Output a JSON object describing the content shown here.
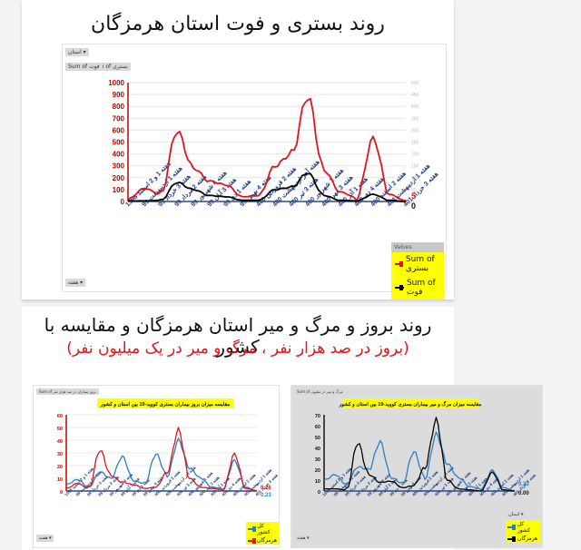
{
  "top_card": {
    "title": "روند بستری و فوت استان هرمزگان",
    "filter_button": "استان ▾",
    "field_buttons": [
      "Sum of بستری",
      "Sum of فوت"
    ],
    "axis_button": "هفته ▾",
    "legend": {
      "header": "Values",
      "items": [
        {
          "label": "Sum of بستری",
          "color": "#e0141c"
        },
        {
          "label": "Sum of فوت",
          "color": "#000000"
        }
      ]
    },
    "end_labels": {
      "hospitalized": "5",
      "deaths": "0"
    }
  },
  "bottom_card": {
    "title": "روند بروز و مرگ و میر استان هرمزگان و مقایسه با کشور",
    "subtitle": "(بروز در صد هزار نفر ، مرگ و میر در یک میلیون نفر)",
    "left_chart": {
      "field_button": "Sum of بروز بیماران در صد هزار نفر",
      "title": "مقایسه میزان بروز بیماران بستری کووید-19 بین استان و کشور",
      "axis_button": "هفته ▾",
      "legend": [
        {
          "label": "کل کشور",
          "color": "#2a7fc4"
        },
        {
          "label": "هرمزگان",
          "color": "#e0141c"
        }
      ],
      "end_labels": {
        "province": "0.26",
        "country": "0.23"
      }
    },
    "right_chart": {
      "field_button": "Sum of مرگ و میر در میلیون",
      "title": "مقایسه میزان مرگ و میر بیماران بستری کووید-19 بین استان و کشور",
      "axis_button": "هفته ▾",
      "filter_button": "استان ▾",
      "legend": [
        {
          "label": "کل کشور",
          "color": "#2a7fc4"
        },
        {
          "label": "هرمزگان",
          "color": "#000000"
        }
      ],
      "end_labels": {
        "country": "0.23",
        "province": "0.00"
      }
    }
  },
  "x_labels": [
    "هفته 1 و 2 اسفند 1398",
    "هفته 1 اردیبهشت 99",
    "هفته 3 خرداد 99",
    "هفته 2 مرداد 99",
    "هفته 4 شهریور 99",
    "هفته 3 آبان 99",
    "هفته 1 دی 99",
    "هفته 4 بهمن 99",
    "هفته 2 فروردین 400",
    "هفته آخر اردیبهشت 400",
    "هفته 3 تیر 400",
    "هفته 1 شهریور 400",
    "هفته 3 مهر 400",
    "هفته 1 آذر 400",
    "هفته 4 دی 400",
    "هفته 2 اسفند 400",
    "هفته 1 اردیبهشت 401",
    "هفته 3 خرداد 401"
  ],
  "chart_data": [
    {
      "type": "line",
      "title": "روند بستری و فوت استان هرمزگان",
      "xlabel": "هفته",
      "ylabel_left": "Sum of بستری",
      "ylabel_right": "Sum of فوت",
      "ylim_left": [
        0,
        1000
      ],
      "ylim_right": [
        0,
        500
      ],
      "yticks_left": [
        0,
        100,
        200,
        300,
        400,
        500,
        600,
        700,
        800,
        900,
        1000
      ],
      "yticks_right": [
        0,
        50,
        100,
        150,
        200,
        250,
        300,
        350,
        400,
        450,
        500
      ],
      "grid": true,
      "legend_position": "bottom-right",
      "x": [
        "هفته 1 و 2 اسفند 1398",
        "هفته 1 اردیبهشت 99",
        "هفته 3 خرداد 99",
        "هفته 2 مرداد 99",
        "هفته 4 شهریور 99",
        "هفته 3 آبان 99",
        "هفته 1 دی 99",
        "هفته 4 بهمن 99",
        "هفته 2 فروردین 400",
        "هفته آخر اردیبهشت 400",
        "هفته 3 تیر 400",
        "هفته 1 شهریور 400",
        "هفته 3 مهر 400",
        "هفته 1 آذر 400",
        "هفته 4 دی 400",
        "هفته 2 اسفند 400",
        "هفته 1 اردیبهشت 401",
        "هفته 3 خرداد 401"
      ],
      "series": [
        {
          "name": "Sum of بستری",
          "color": "#e0141c",
          "values": [
            20,
            110,
            60,
            590,
            280,
            170,
            140,
            40,
            50,
            300,
            400,
            880,
            260,
            80,
            30,
            530,
            60,
            5
          ]
        },
        {
          "name": "Sum of فوت",
          "color": "#000000",
          "values": [
            5,
            5,
            10,
            160,
            100,
            50,
            40,
            10,
            10,
            100,
            120,
            240,
            50,
            10,
            5,
            60,
            10,
            0
          ]
        }
      ]
    },
    {
      "type": "line",
      "title": "مقایسه میزان بروز بیماران بستری کووید-19 بین استان و کشور",
      "ylim": [
        0,
        60
      ],
      "yticks": [
        0,
        10,
        20,
        30,
        40,
        50,
        60
      ],
      "grid": true,
      "legend_position": "bottom-right",
      "x": [
        "هفته 1 و 2 اسفند 1398",
        "هفته 1 اردیبهشت 99",
        "هفته 3 خرداد 99",
        "هفته 2 مرداد 99",
        "هفته 4 شهریور 99",
        "هفته 3 آبان 99",
        "هفته 1 دی 99",
        "هفته 4 بهمن 99",
        "هفته 2 فروردین 400",
        "هفته آخر اردیبهشت 400",
        "هفته 3 تیر 400",
        "هفته 1 شهریور 400",
        "هفته 3 مهر 400",
        "هفته 1 آذر 400",
        "هفته 4 دی 400",
        "هفته 2 اسفند 400",
        "هفته 1 اردیبهشت 401",
        "هفته 3 خرداد 401"
      ],
      "series": [
        {
          "name": "کل کشور",
          "color": "#2a7fc4",
          "values": [
            5,
            9,
            3,
            15,
            10,
            27,
            8,
            6,
            29,
            12,
            40,
            18,
            10,
            3,
            2,
            24,
            3,
            0.23
          ]
        },
        {
          "name": "هرمزگان",
          "color": "#e0141c",
          "values": [
            2,
            6,
            2,
            32,
            12,
            7,
            5,
            2,
            3,
            15,
            48,
            10,
            3,
            2,
            1,
            29,
            2,
            0.26
          ]
        }
      ]
    },
    {
      "type": "line",
      "title": "مقایسه میزان مرگ و میر بیماران بستری کووید-19 بین استان و کشور",
      "ylim": [
        0,
        70
      ],
      "yticks": [
        0,
        10,
        20,
        30,
        40,
        50,
        60,
        70
      ],
      "grid": false,
      "legend_position": "bottom-right",
      "x": [
        "هفته 1 و 2 اسفند 1398",
        "هفته 1 اردیبهشت 99",
        "هفته 3 خرداد 99",
        "هفته 2 مرداد 99",
        "هفته 4 شهریور 99",
        "هفته 3 آبان 99",
        "هفته 1 دی 99",
        "هفته 4 بهمن 99",
        "هفته 2 فروردین 400",
        "هفته آخر اردیبهشت 400",
        "هفته 3 تیر 400",
        "هفته 1 شهریور 400",
        "هفته 3 مهر 400",
        "هفته 1 آذر 400",
        "هفته 4 دی 400",
        "هفته 2 اسفند 400",
        "هفته 1 اردیبهشت 401",
        "هفته 3 خرداد 401"
      ],
      "series": [
        {
          "name": "کل کشور",
          "color": "#2a7fc4",
          "values": [
            10,
            15,
            6,
            22,
            20,
            45,
            12,
            7,
            36,
            12,
            52,
            25,
            12,
            4,
            2,
            19,
            3,
            0.23
          ]
        },
        {
          "name": "هرمزگان",
          "color": "#000000",
          "values": [
            2,
            2,
            1,
            44,
            15,
            8,
            9,
            3,
            5,
            22,
            65,
            10,
            2,
            1,
            0,
            17,
            1,
            0.0
          ]
        }
      ]
    }
  ]
}
